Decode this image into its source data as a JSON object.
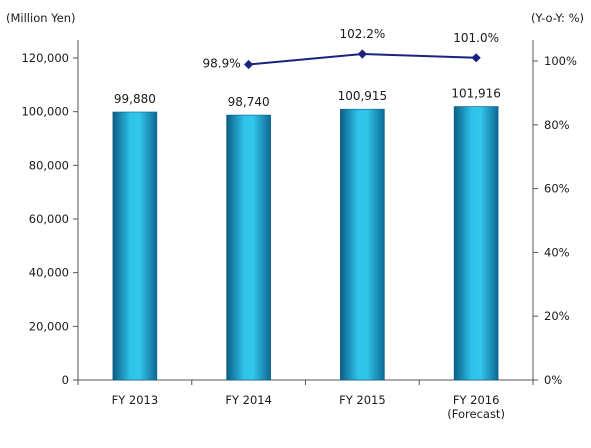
{
  "chart_data": {
    "type": "bar",
    "categories": [
      [
        "FY 2013"
      ],
      [
        "FY 2014"
      ],
      [
        "FY 2015"
      ],
      [
        "FY 2016",
        "(Forecast)"
      ]
    ],
    "left_axis": {
      "unit_label": "(Million Yen)",
      "ylim": [
        0,
        120000
      ],
      "ticks": [
        0,
        20000,
        40000,
        60000,
        80000,
        100000,
        120000
      ],
      "tick_labels": [
        "0",
        "20,000",
        "40,000",
        "60,000",
        "80,000",
        "100,000",
        "120,000"
      ]
    },
    "right_axis": {
      "unit_label": "(Y-o-Y: %)",
      "ylim": [
        0,
        110
      ],
      "ticks": [
        0,
        20,
        40,
        60,
        80,
        100
      ],
      "tick_labels": [
        "0%",
        "20%",
        "40%",
        "60%",
        "80%",
        "100%"
      ]
    },
    "series": [
      {
        "type": "bar",
        "axis": "left",
        "values": [
          99880,
          98740,
          100915,
          101916
        ],
        "labels": [
          "99,880",
          "98,740",
          "100,915",
          "101,916"
        ]
      },
      {
        "type": "line",
        "axis": "right",
        "values": [
          null,
          98.9,
          102.2,
          101.0
        ],
        "labels": [
          "",
          "98.9%",
          "102.2%",
          "101.0%"
        ]
      }
    ],
    "colors": {
      "bar_dark": "#0a5e86",
      "bar_light": "#2ec3ea",
      "line": "#1a237e"
    },
    "grid": false
  }
}
